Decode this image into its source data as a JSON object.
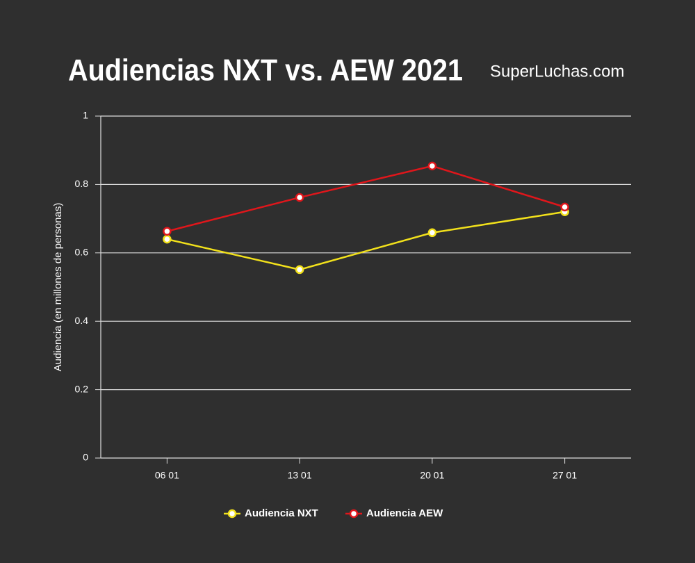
{
  "chart_data": {
    "type": "line",
    "title": "Audiencias NXT vs. AEW 2021",
    "source": "SuperLuchas.com",
    "ylabel": "Audiencia (en millones de personas)",
    "categories": [
      "06 01",
      "13 01",
      "20 01",
      "27 01"
    ],
    "series": [
      {
        "name": "Audiencia NXT",
        "color": "#f2e11b",
        "values": [
          0.64,
          0.551,
          0.659,
          0.72
        ]
      },
      {
        "name": "Audiencia AEW",
        "color": "#e0161b",
        "values": [
          0.663,
          0.762,
          0.854,
          0.734
        ]
      }
    ],
    "ylim": [
      0,
      1
    ],
    "yticks": [
      0,
      0.2,
      0.4,
      0.6,
      0.8,
      1
    ],
    "grid": true,
    "legend": "bottom"
  }
}
